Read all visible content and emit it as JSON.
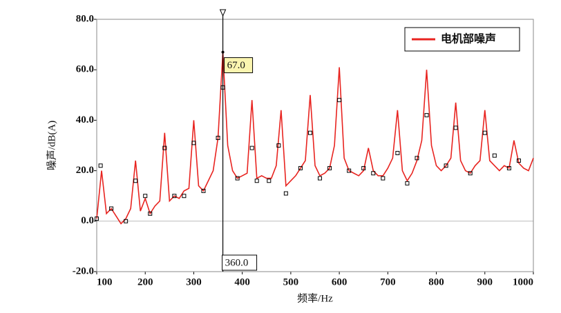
{
  "chart_data": {
    "type": "line",
    "xlabel": "频率/Hz",
    "ylabel": "噪声/dB(A)",
    "x": [
      100,
      110,
      120,
      130,
      140,
      150,
      160,
      170,
      180,
      190,
      200,
      210,
      220,
      230,
      240,
      250,
      260,
      270,
      280,
      290,
      300,
      310,
      320,
      330,
      340,
      350,
      360,
      370,
      380,
      390,
      400,
      410,
      420,
      430,
      440,
      450,
      460,
      470,
      480,
      490,
      500,
      510,
      520,
      530,
      540,
      550,
      560,
      570,
      580,
      590,
      600,
      610,
      620,
      630,
      640,
      650,
      660,
      670,
      680,
      690,
      700,
      710,
      720,
      730,
      740,
      750,
      760,
      770,
      780,
      790,
      800,
      810,
      820,
      830,
      840,
      850,
      860,
      870,
      880,
      890,
      900,
      910,
      920,
      930,
      940,
      950,
      960,
      970,
      980,
      990,
      1000
    ],
    "series": [
      {
        "name": "电机部噪声",
        "color": "#e8231f",
        "values": [
          1,
          20,
          3,
          5,
          2,
          -1,
          1,
          5,
          24,
          4,
          9,
          3,
          6,
          8,
          35,
          8,
          10,
          9,
          12,
          13,
          40,
          14,
          12,
          16,
          20,
          33,
          67,
          30,
          20,
          17,
          18,
          19,
          48,
          17,
          18,
          17,
          17,
          22,
          44,
          14,
          16,
          18,
          21,
          24,
          50,
          22,
          18,
          19,
          21,
          30,
          61,
          25,
          20,
          19,
          18,
          20,
          29,
          20,
          18,
          18,
          21,
          25,
          44,
          20,
          16,
          19,
          24,
          32,
          60,
          30,
          22,
          20,
          22,
          25,
          47,
          24,
          20,
          19,
          22,
          24,
          44,
          24,
          22,
          20,
          22,
          21,
          32,
          23,
          21,
          20,
          25
        ]
      }
    ],
    "points": {
      "x": [
        100,
        108,
        130,
        160,
        180,
        200,
        210,
        240,
        260,
        280,
        300,
        320,
        350,
        360,
        390,
        420,
        430,
        455,
        475,
        490,
        520,
        540,
        560,
        580,
        600,
        620,
        650,
        670,
        690,
        720,
        740,
        760,
        780,
        820,
        840,
        870,
        900,
        920,
        950,
        970
      ],
      "y": [
        1,
        22,
        5,
        0,
        16,
        10,
        3,
        29,
        10,
        10,
        31,
        12,
        33,
        53,
        17,
        29,
        16,
        16,
        30,
        11,
        21,
        35,
        17,
        21,
        48,
        20,
        21,
        19,
        17,
        27,
        15,
        25,
        42,
        22,
        37,
        19,
        35,
        26,
        21,
        24
      ]
    },
    "cursor": {
      "x": 360,
      "x_label": "360.0",
      "y": 67,
      "y_label": "67.0"
    },
    "xlim": [
      100,
      1000
    ],
    "ylim": [
      -20,
      80
    ],
    "xticks": [
      100,
      200,
      300,
      400,
      500,
      600,
      700,
      800,
      900,
      1000
    ],
    "yticks": [
      {
        "value": -20,
        "label": "-20.0"
      },
      {
        "value": 0,
        "label": "0.0"
      },
      {
        "value": 20,
        "label": "20.0"
      },
      {
        "value": 40,
        "label": "40.0"
      },
      {
        "value": 60,
        "label": "60.0"
      },
      {
        "value": 80,
        "label": "80.0"
      }
    ],
    "legend": "top-right"
  }
}
